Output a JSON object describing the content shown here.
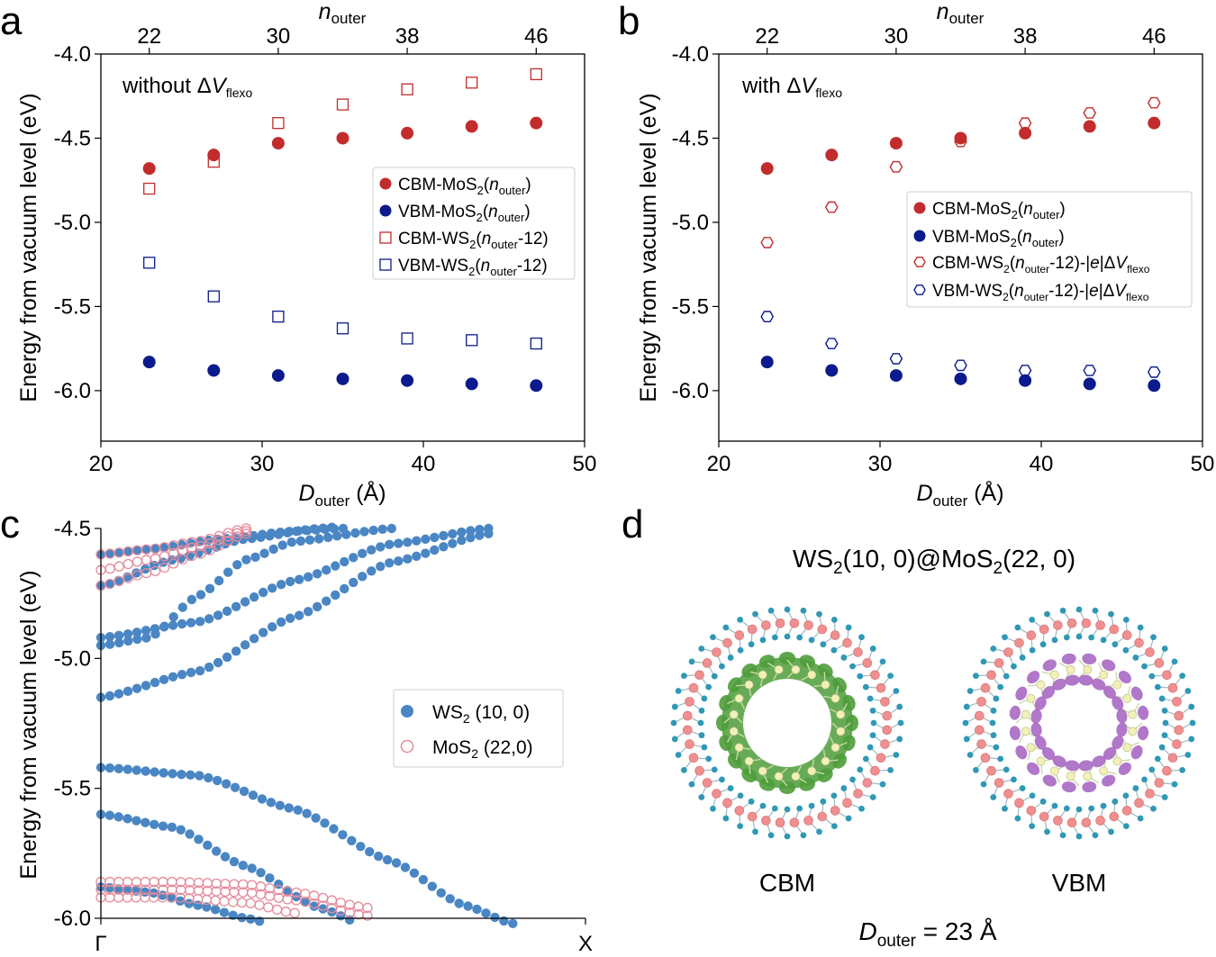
{
  "colors": {
    "red": "#c22c2c",
    "navy": "#0b1a8c",
    "ws2_band": "#4a86c4",
    "mos2_band": "#e58a9a",
    "green_orbital": "#4e9c3a",
    "purple_orbital": "#a35fc0",
    "ring_s": "#2f98b5",
    "ring_metal": "#ef8f8f"
  },
  "chart_data": [
    {
      "panel": "a",
      "type": "scatter",
      "annotation": {
        "prefix": "without Δ",
        "var": "V",
        "sub": "flexo"
      },
      "xlabel": {
        "main": "D",
        "sub": "outer",
        "unit": " (Å)"
      },
      "ylabel": "Energy from vacuum level (eV)",
      "top_axis": {
        "label_main": "n",
        "label_sub": "outer",
        "ticks": [
          "22",
          "30",
          "38",
          "46"
        ],
        "tick_positions": [
          23,
          31,
          39,
          47
        ]
      },
      "xlim": [
        20,
        50
      ],
      "ylim": [
        -6.3,
        -4.0
      ],
      "xticks": [
        "20",
        "30",
        "40",
        "50"
      ],
      "yticks": [
        "-4.0",
        "-4.5",
        "-5.0",
        "-5.5",
        "-6.0"
      ],
      "x": [
        23,
        27,
        31,
        35,
        39,
        43,
        47
      ],
      "series": [
        {
          "name": "CBM-MoS2(nouter)",
          "marker": "circle",
          "fill": true,
          "color": "red",
          "values": [
            -4.68,
            -4.6,
            -4.53,
            -4.5,
            -4.47,
            -4.43,
            -4.41
          ]
        },
        {
          "name": "VBM-MoS2(nouter)",
          "marker": "circle",
          "fill": true,
          "color": "navy",
          "values": [
            -5.83,
            -5.88,
            -5.91,
            -5.93,
            -5.94,
            -5.96,
            -5.97
          ]
        },
        {
          "name": "CBM-WS2(nouter-12)",
          "marker": "square",
          "fill": false,
          "color": "red",
          "values": [
            -4.8,
            -4.64,
            -4.41,
            -4.3,
            -4.21,
            -4.17,
            -4.12
          ]
        },
        {
          "name": "VBM-WS2(nouter-12)",
          "marker": "square",
          "fill": false,
          "color": "navy",
          "values": [
            -5.24,
            -5.44,
            -5.56,
            -5.63,
            -5.69,
            -5.7,
            -5.72
          ]
        }
      ],
      "legend": [
        {
          "label": "CBM-MoS",
          "sub": "2",
          "rest": "(",
          "italic": "n",
          "isub": "outer",
          "tail": ")"
        },
        {
          "label": "VBM-MoS",
          "sub": "2",
          "rest": "(",
          "italic": "n",
          "isub": "outer",
          "tail": ")"
        },
        {
          "label": "CBM-WS",
          "sub": "2",
          "rest": "(",
          "italic": "n",
          "isub": "outer",
          "tail": "-12)"
        },
        {
          "label": "VBM-WS",
          "sub": "2",
          "rest": "(",
          "italic": "n",
          "isub": "outer",
          "tail": "-12)"
        }
      ]
    },
    {
      "panel": "b",
      "type": "scatter",
      "annotation": {
        "prefix": "with Δ",
        "var": "V",
        "sub": "flexo"
      },
      "xlabel": {
        "main": "D",
        "sub": "outer",
        "unit": " (Å)"
      },
      "ylabel": "Energy from vacuum level (eV)",
      "top_axis": {
        "label_main": "n",
        "label_sub": "outer",
        "ticks": [
          "22",
          "30",
          "38",
          "46"
        ],
        "tick_positions": [
          23,
          31,
          39,
          47
        ]
      },
      "xlim": [
        20,
        50
      ],
      "ylim": [
        -6.3,
        -4.0
      ],
      "xticks": [
        "20",
        "30",
        "40",
        "50"
      ],
      "yticks": [
        "-4.0",
        "-4.5",
        "-5.0",
        "-5.5",
        "-6.0"
      ],
      "x": [
        23,
        27,
        31,
        35,
        39,
        43,
        47
      ],
      "series": [
        {
          "name": "CBM-MoS2(nouter)",
          "marker": "circle",
          "fill": true,
          "color": "red",
          "values": [
            -4.68,
            -4.6,
            -4.53,
            -4.5,
            -4.47,
            -4.43,
            -4.41
          ]
        },
        {
          "name": "VBM-MoS2(nouter)",
          "marker": "circle",
          "fill": true,
          "color": "navy",
          "values": [
            -5.83,
            -5.88,
            -5.91,
            -5.93,
            -5.94,
            -5.96,
            -5.97
          ]
        },
        {
          "name": "CBM-WS2(nouter-12)-|e|ΔVflexo",
          "marker": "hexagon",
          "fill": false,
          "color": "red",
          "values": [
            -5.12,
            -4.91,
            -4.67,
            -4.52,
            -4.41,
            -4.35,
            -4.29
          ]
        },
        {
          "name": "VBM-WS2(nouter-12)-|e|ΔVflexo",
          "marker": "hexagon",
          "fill": false,
          "color": "navy",
          "values": [
            -5.56,
            -5.72,
            -5.81,
            -5.85,
            -5.88,
            -5.88,
            -5.89
          ]
        }
      ],
      "legend": [
        {
          "label": "CBM-MoS",
          "sub": "2",
          "rest": "(",
          "italic": "n",
          "isub": "outer",
          "tail": ")"
        },
        {
          "label": "VBM-MoS",
          "sub": "2",
          "rest": "(",
          "italic": "n",
          "isub": "outer",
          "tail": ")"
        },
        {
          "label": "CBM-WS",
          "sub": "2",
          "rest": "(",
          "italic": "n",
          "isub": "outer",
          "tail": "-12)-|",
          "e": "e",
          "tail2": "|Δ",
          "v": "V",
          "vsub": "flexo"
        },
        {
          "label": "VBM-WS",
          "sub": "2",
          "rest": "(",
          "italic": "n",
          "isub": "outer",
          "tail": "-12)-|",
          "e": "e",
          "tail2": "|Δ",
          "v": "V",
          "vsub": "flexo"
        }
      ]
    },
    {
      "panel": "c",
      "type": "scatter",
      "subtype": "band-structure",
      "ylabel": "Energy from vacuum level (eV)",
      "ylim": [
        -6.0,
        -4.5
      ],
      "xlim": [
        0,
        1
      ],
      "xticks": [
        "Γ",
        "X"
      ],
      "yticks": [
        "-4.5",
        "-5.0",
        "-5.5",
        "-6.0"
      ],
      "legend": [
        {
          "label": "WS",
          "sub": "2",
          "rest": " (10, 0)"
        },
        {
          "label": "MoS",
          "sub": "2",
          "rest": " (22,0)"
        }
      ],
      "series": [
        {
          "name": "WS2 (10, 0)",
          "marker": "circle",
          "fill": true,
          "color": "ws2_band",
          "bands": [
            {
              "k": [
                0.0,
                0.2,
                0.4,
                0.6,
                0.8
              ],
              "E": [
                -5.15,
                -5.05,
                -4.84,
                -4.63,
                -4.52
              ]
            },
            {
              "k": [
                0.0,
                0.2,
                0.4,
                0.6,
                0.8
              ],
              "E": [
                -4.92,
                -4.86,
                -4.7,
                -4.56,
                -4.5
              ]
            },
            {
              "k": [
                0.0,
                0.1,
                0.2,
                0.3,
                0.4,
                0.6
              ],
              "E": [
                -4.95,
                -4.92,
                -4.76,
                -4.62,
                -4.55,
                -4.5
              ]
            },
            {
              "k": [
                0.0,
                0.15,
                0.3,
                0.45,
                0.55
              ],
              "E": [
                -4.72,
                -4.62,
                -4.54,
                -4.5,
                -4.48
              ]
            },
            {
              "k": [
                0.0,
                0.1,
                0.25,
                0.4,
                0.5
              ],
              "E": [
                -4.6,
                -4.58,
                -4.54,
                -4.51,
                -4.5
              ]
            },
            {
              "k": [
                0.0,
                0.2,
                0.4,
                0.6,
                0.75,
                0.85
              ],
              "E": [
                -5.42,
                -5.45,
                -5.58,
                -5.78,
                -5.95,
                -6.02
              ]
            },
            {
              "k": [
                0.0,
                0.15,
                0.3,
                0.45,
                0.55
              ],
              "E": [
                -5.6,
                -5.65,
                -5.8,
                -5.96,
                -6.03
              ]
            },
            {
              "k": [
                0.0,
                0.1,
                0.2,
                0.3,
                0.4
              ],
              "E": [
                -5.88,
                -5.9,
                -5.95,
                -6.0,
                -6.05
              ]
            }
          ]
        },
        {
          "name": "MoS2 (22,0)",
          "marker": "circle",
          "fill": false,
          "color": "mos2_band",
          "bands": [
            {
              "k": [
                0.0,
                0.1,
                0.2,
                0.3
              ],
              "E": [
                -4.6,
                -4.58,
                -4.55,
                -4.5
              ]
            },
            {
              "k": [
                0.0,
                0.1,
                0.2,
                0.3
              ],
              "E": [
                -4.66,
                -4.62,
                -4.57,
                -4.51
              ]
            },
            {
              "k": [
                0.0,
                0.1,
                0.2,
                0.3
              ],
              "E": [
                -4.72,
                -4.67,
                -4.6,
                -4.52
              ]
            },
            {
              "k": [
                0.0,
                0.15,
                0.3,
                0.4,
                0.55
              ],
              "E": [
                -5.86,
                -5.86,
                -5.87,
                -5.9,
                -5.96
              ]
            },
            {
              "k": [
                0.0,
                0.15,
                0.3,
                0.4,
                0.55
              ],
              "E": [
                -5.89,
                -5.89,
                -5.9,
                -5.93,
                -5.99
              ]
            },
            {
              "k": [
                0.0,
                0.15,
                0.3,
                0.4
              ],
              "E": [
                -5.92,
                -5.92,
                -5.94,
                -5.98
              ]
            }
          ]
        }
      ]
    }
  ],
  "panel_labels": {
    "a": "a",
    "b": "b",
    "c": "c",
    "d": "d"
  },
  "panel_d": {
    "title_main": "WS",
    "title_sub": "2",
    "title_mid": "(10, 0)@MoS",
    "title_sub2": "2",
    "title_tail": "(22, 0)",
    "left_label": "CBM",
    "right_label": "VBM",
    "footer_main": "D",
    "footer_sub": "outer",
    "footer_tail": " =  23 Å"
  }
}
